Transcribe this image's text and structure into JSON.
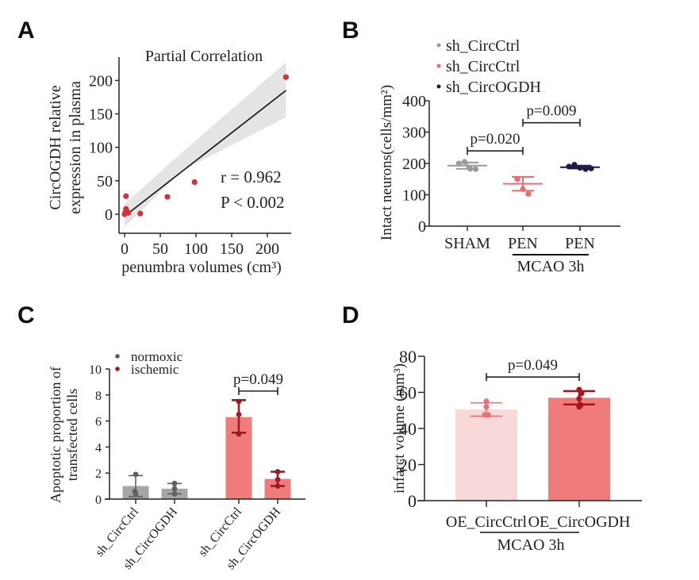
{
  "panels": {
    "A": {
      "letter": "A"
    },
    "B": {
      "letter": "B"
    },
    "C": {
      "letter": "C"
    },
    "D": {
      "letter": "D"
    }
  },
  "colors": {
    "scatter_point": "#d0333c",
    "ci_band": "#e4e4e4",
    "sham_gray": "#9b9b9b",
    "pen_ctrl_pink": "#ee6b70",
    "pen_ogdh_navy": "#1f1a44",
    "normoxic_bar": "#a6a6a6",
    "normoxic_point": "#606060",
    "ischemic_bar": "#ef7b7b",
    "ischemic_point": "#9b1b22",
    "oe_ctrl_bar": "#f9d8da",
    "oe_ctrl_point": "#ec7177",
    "oe_ogdh_bar": "#ef7b7b",
    "oe_ogdh_point": "#a8161f"
  },
  "chart_data": [
    {
      "panel": "A",
      "type": "scatter",
      "title": "Partial Correlation",
      "xlabel": "penumbra volumes (cm³)",
      "ylabel": [
        "CircOGDH relative",
        "expression in plasma"
      ],
      "xlim": [
        -8,
        233
      ],
      "ylim": [
        -28,
        235
      ],
      "xticks": [
        0,
        50,
        100,
        150,
        200
      ],
      "yticks": [
        0,
        50,
        100,
        150,
        200
      ],
      "points": [
        {
          "x": 0,
          "y": 0
        },
        {
          "x": 1,
          "y": 3
        },
        {
          "x": 2,
          "y": 8
        },
        {
          "x": 3,
          "y": 5
        },
        {
          "x": 5,
          "y": 2
        },
        {
          "x": 2,
          "y": 27
        },
        {
          "x": 22,
          "y": 1
        },
        {
          "x": 60,
          "y": 26
        },
        {
          "x": 98,
          "y": 48
        },
        {
          "x": 226,
          "y": 205
        }
      ],
      "fit_line": {
        "x0": 0,
        "y0": -3,
        "x1": 226,
        "y1": 185
      },
      "ci_band": {
        "x0": 0,
        "lo0": -19,
        "hi0": 15,
        "xmid": 80,
        "lomid": 65,
        "himid": 92,
        "x1": 226,
        "lo1": 145,
        "hi1": 227
      },
      "annotations": [
        "r = 0.962",
        "P < 0.002"
      ]
    },
    {
      "panel": "B",
      "type": "scatter",
      "ylabel": "Intact neurons(cells/mm²)",
      "ylim": [
        0,
        400
      ],
      "yticks": [
        0,
        100,
        200,
        300,
        400
      ],
      "categories": [
        "SHAM",
        "PEN",
        "PEN"
      ],
      "group_label": "MCAO 3h",
      "legend": [
        {
          "label": "sh_CircCtrl",
          "color_key": "sham_gray"
        },
        {
          "label": "sh_CircCtrl",
          "color_key": "pen_ctrl_pink"
        },
        {
          "label": "sh_CircOGDH",
          "color_key": "pen_ogdh_navy"
        }
      ],
      "legend_position": "top-left",
      "series": [
        {
          "name": "sh_CircCtrl (SHAM)",
          "mean": 193,
          "sd_low": 183,
          "sd_high": 203,
          "points": [
            200,
            205,
            183,
            182
          ],
          "color_key": "sham_gray"
        },
        {
          "name": "sh_CircCtrl (PEN)",
          "mean": 135,
          "sd_low": 113,
          "sd_high": 157,
          "points": [
            150,
            118,
            103
          ],
          "color_key": "pen_ctrl_pink"
        },
        {
          "name": "sh_CircOGDH (PEN)",
          "mean": 188,
          "sd_low": 184,
          "sd_high": 193,
          "points": [
            190,
            196,
            186,
            182,
            184
          ],
          "color_key": "pen_ogdh_navy"
        }
      ],
      "comparisons": [
        {
          "from": 0,
          "to": 1,
          "y": 240,
          "label": "p=0.020"
        },
        {
          "from": 1,
          "to": 2,
          "y": 330,
          "label": "p=0.009"
        }
      ]
    },
    {
      "panel": "C",
      "type": "bar",
      "ylabel": [
        "Apoptotic proportion of",
        "transfected cells"
      ],
      "ylim": [
        0,
        10
      ],
      "yticks": [
        0,
        2,
        4,
        6,
        8,
        10
      ],
      "categories": [
        "sh_CircCtrl",
        "sh_CircOGDH",
        "sh_CircCtrl",
        "sh_CircOGDH"
      ],
      "legend": [
        {
          "label": "normoxic",
          "color_key": "normoxic_point"
        },
        {
          "label": "ischemic",
          "color_key": "ischemic_point"
        }
      ],
      "legend_position": "top-left",
      "series": [
        {
          "name": "normoxic",
          "values": [
            1.0,
            0.8
          ],
          "err_low": [
            0.2,
            0.4
          ],
          "err_high": [
            1.8,
            1.2
          ],
          "points": [
            [
              1.9,
              0.6,
              0.4
            ],
            [
              1.2,
              0.8,
              0.4
            ]
          ]
        },
        {
          "name": "ischemic",
          "values": [
            6.3,
            1.55
          ],
          "err_low": [
            5.1,
            1.0
          ],
          "err_high": [
            7.6,
            2.1
          ],
          "points": [
            [
              7.5,
              6.5,
              5.0
            ],
            [
              2.1,
              1.5,
              1.0
            ]
          ]
        }
      ],
      "comparisons": [
        {
          "from": 2,
          "to": 3,
          "y": 8.3,
          "label": "p=0.049"
        }
      ]
    },
    {
      "panel": "D",
      "type": "bar",
      "ylabel": "infarct volume (mm³)",
      "ylim": [
        0,
        80
      ],
      "yticks": [
        0,
        20,
        40,
        60,
        80
      ],
      "categories": [
        "OE_CircCtrl",
        "OE_CircOGDH"
      ],
      "group_label": "MCAO 3h",
      "values": [
        50.5,
        57
      ],
      "err_low": [
        46.8,
        53.3
      ],
      "err_high": [
        54.2,
        60.7
      ],
      "points": [
        [
          55,
          52,
          47.5,
          47.5
        ],
        [
          61.5,
          59.5,
          56.5,
          53,
          52
        ]
      ],
      "comparisons": [
        {
          "from": 0,
          "to": 1,
          "y": 68.5,
          "label": "p=0.049"
        }
      ]
    }
  ]
}
